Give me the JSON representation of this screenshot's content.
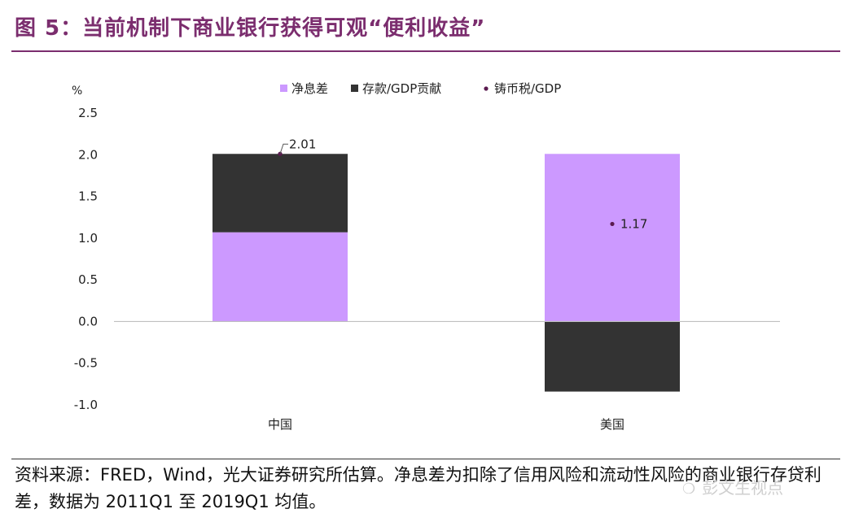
{
  "header": {
    "title": "图 5：当前机制下商业银行获得可观“便利收益”",
    "title_color": "#7b2d6e"
  },
  "source_note": "资料来源：FRED，Wind，光大证券研究所估算。净息差为扣除了信用风险和流动性风险的商业银行存贷利差，数据为 2011Q1 至 2019Q1 均值。",
  "watermark": "彭文生视点",
  "chart_data": {
    "type": "bar",
    "stacked": true,
    "unit_label": "%",
    "categories": [
      "中国",
      "美国"
    ],
    "series": [
      {
        "name": "净息差",
        "values": [
          1.07,
          2.01
        ],
        "color": "#cc99ff"
      },
      {
        "name": "存款/GDP贡献",
        "values": [
          0.94,
          -0.84
        ],
        "color": "#333333"
      }
    ],
    "markers": {
      "name": "铸币税/GDP",
      "values": [
        2.01,
        1.17
      ],
      "labels": [
        "2.01",
        "1.17"
      ],
      "color": "#5a1a4f"
    },
    "ylim": [
      -1.0,
      2.5
    ],
    "yticks": [
      2.5,
      2.0,
      1.5,
      1.0,
      0.5,
      0.0,
      -0.5,
      -1.0
    ],
    "ytick_labels": [
      "2.5",
      "2.0",
      "1.5",
      "1.0",
      "0.5",
      "0.0",
      "-0.5",
      "-1.0"
    ],
    "legend_position": "top",
    "grid": false
  }
}
